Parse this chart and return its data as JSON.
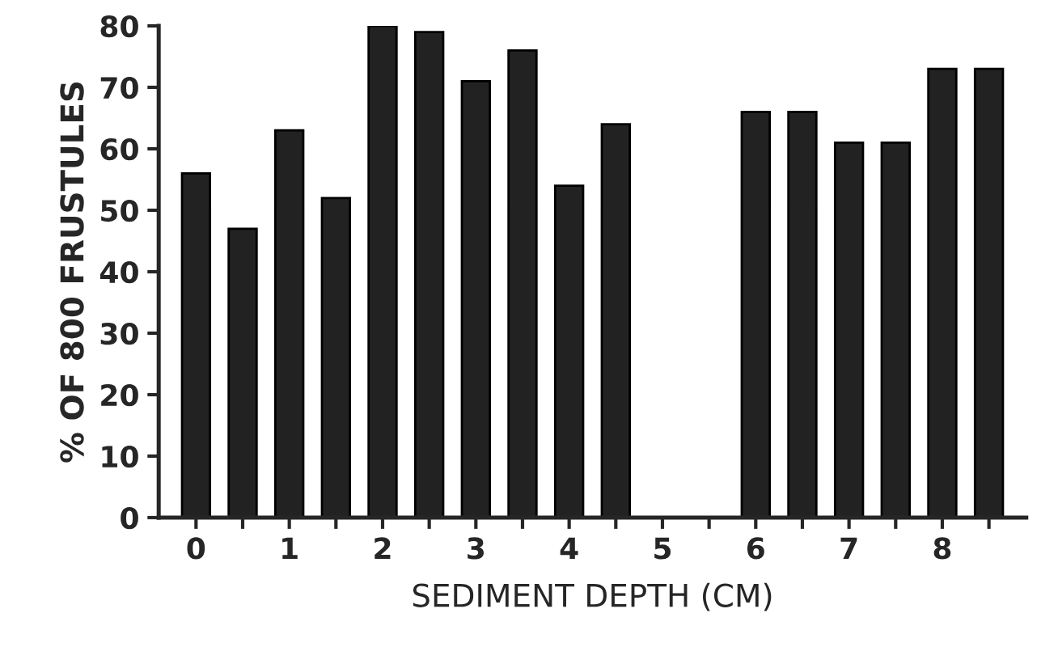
{
  "chart_data": {
    "type": "bar",
    "xlabel": "SEDIMENT DEPTH (CM)",
    "ylabel": "% OF 800 FRUSTULES",
    "x": [
      0,
      0.5,
      1,
      1.5,
      2,
      2.5,
      3,
      3.5,
      4,
      4.5,
      5,
      5.5,
      6,
      6.5,
      7,
      7.5,
      8,
      8.5
    ],
    "values": [
      56,
      47,
      63,
      52,
      80,
      79,
      71,
      76,
      54,
      64,
      null,
      null,
      66,
      66,
      61,
      61,
      73,
      73
    ],
    "color": "#222222",
    "xlim": [
      -0.4,
      8.9
    ],
    "xticks": [
      0,
      {
        "value": 0.5,
        "label": null
      },
      1,
      {
        "value": 1.5,
        "label": null
      },
      2,
      {
        "value": 2.5,
        "label": null
      },
      3,
      {
        "value": 3.5,
        "label": null
      },
      4,
      {
        "value": 4.5,
        "label": null
      },
      5,
      {
        "value": 5.5,
        "label": null
      },
      6,
      {
        "value": 6.5,
        "label": null
      },
      7,
      {
        "value": 7.5,
        "label": null
      },
      8,
      {
        "value": 8.5,
        "label": null
      }
    ],
    "ylim": [
      0,
      80
    ],
    "yticks": [
      0,
      10,
      20,
      30,
      40,
      50,
      60,
      70,
      80
    ],
    "grid": false
  }
}
